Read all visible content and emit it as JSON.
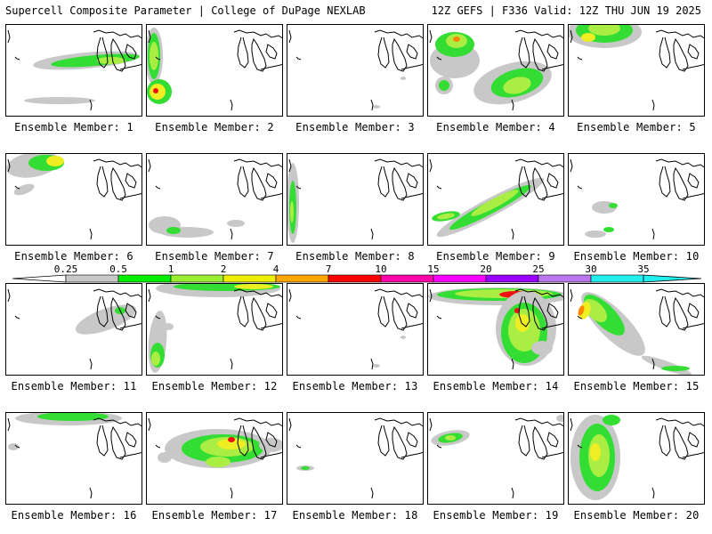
{
  "header": {
    "title": "Supercell Composite Parameter | College of DuPage NEXLAB",
    "run_info": "12Z GEFS | F336 Valid: 12Z THU JUN 19 2025"
  },
  "colorbar": {
    "levels": [
      "0.25",
      "0.5",
      "1",
      "2",
      "4",
      "7",
      "10",
      "15",
      "20",
      "25",
      "30",
      "35"
    ],
    "colors": [
      "#c8c8c8",
      "#00ee00",
      "#99ee33",
      "#eeee00",
      "#ffa500",
      "#ff0000",
      "#ff00aa",
      "#ff00ff",
      "#9900ff",
      "#bb77ee",
      "#22eeee"
    ]
  },
  "fill_colors": {
    "light": "#c8c8c8",
    "green": "#33dd33",
    "lime": "#aaee44",
    "yellow": "#eeee22",
    "orange": "#ff8800",
    "red": "#ee1111"
  },
  "members": [
    {
      "label": "Ensemble Member: 1",
      "pattern": "band-north"
    },
    {
      "label": "Ensemble Member: 2",
      "pattern": "west-edge"
    },
    {
      "label": "Ensemble Member: 3",
      "pattern": "sparse"
    },
    {
      "label": "Ensemble Member: 4",
      "pattern": "wide-central"
    },
    {
      "label": "Ensemble Member: 5",
      "pattern": "north-blob"
    },
    {
      "label": "Ensemble Member: 6",
      "pattern": "northwest"
    },
    {
      "label": "Ensemble Member: 7",
      "pattern": "south-faint"
    },
    {
      "label": "Ensemble Member: 8",
      "pattern": "west-strip"
    },
    {
      "label": "Ensemble Member: 9",
      "pattern": "diagonal"
    },
    {
      "label": "Ensemble Member: 10",
      "pattern": "south-specks"
    },
    {
      "label": "Ensemble Member: 11",
      "pattern": "faint-east"
    },
    {
      "label": "Ensemble Member: 12",
      "pattern": "west-curve"
    },
    {
      "label": "Ensemble Member: 13",
      "pattern": "sparse"
    },
    {
      "label": "Ensemble Member: 14",
      "pattern": "strong-lakes"
    },
    {
      "label": "Ensemble Member: 15",
      "pattern": "diag-band"
    },
    {
      "label": "Ensemble Member: 16",
      "pattern": "north-strip"
    },
    {
      "label": "Ensemble Member: 17",
      "pattern": "central-blob"
    },
    {
      "label": "Ensemble Member: 18",
      "pattern": "tiny"
    },
    {
      "label": "Ensemble Member: 19",
      "pattern": "northwest-small"
    },
    {
      "label": "Ensemble Member: 20",
      "pattern": "west-vertical"
    }
  ]
}
